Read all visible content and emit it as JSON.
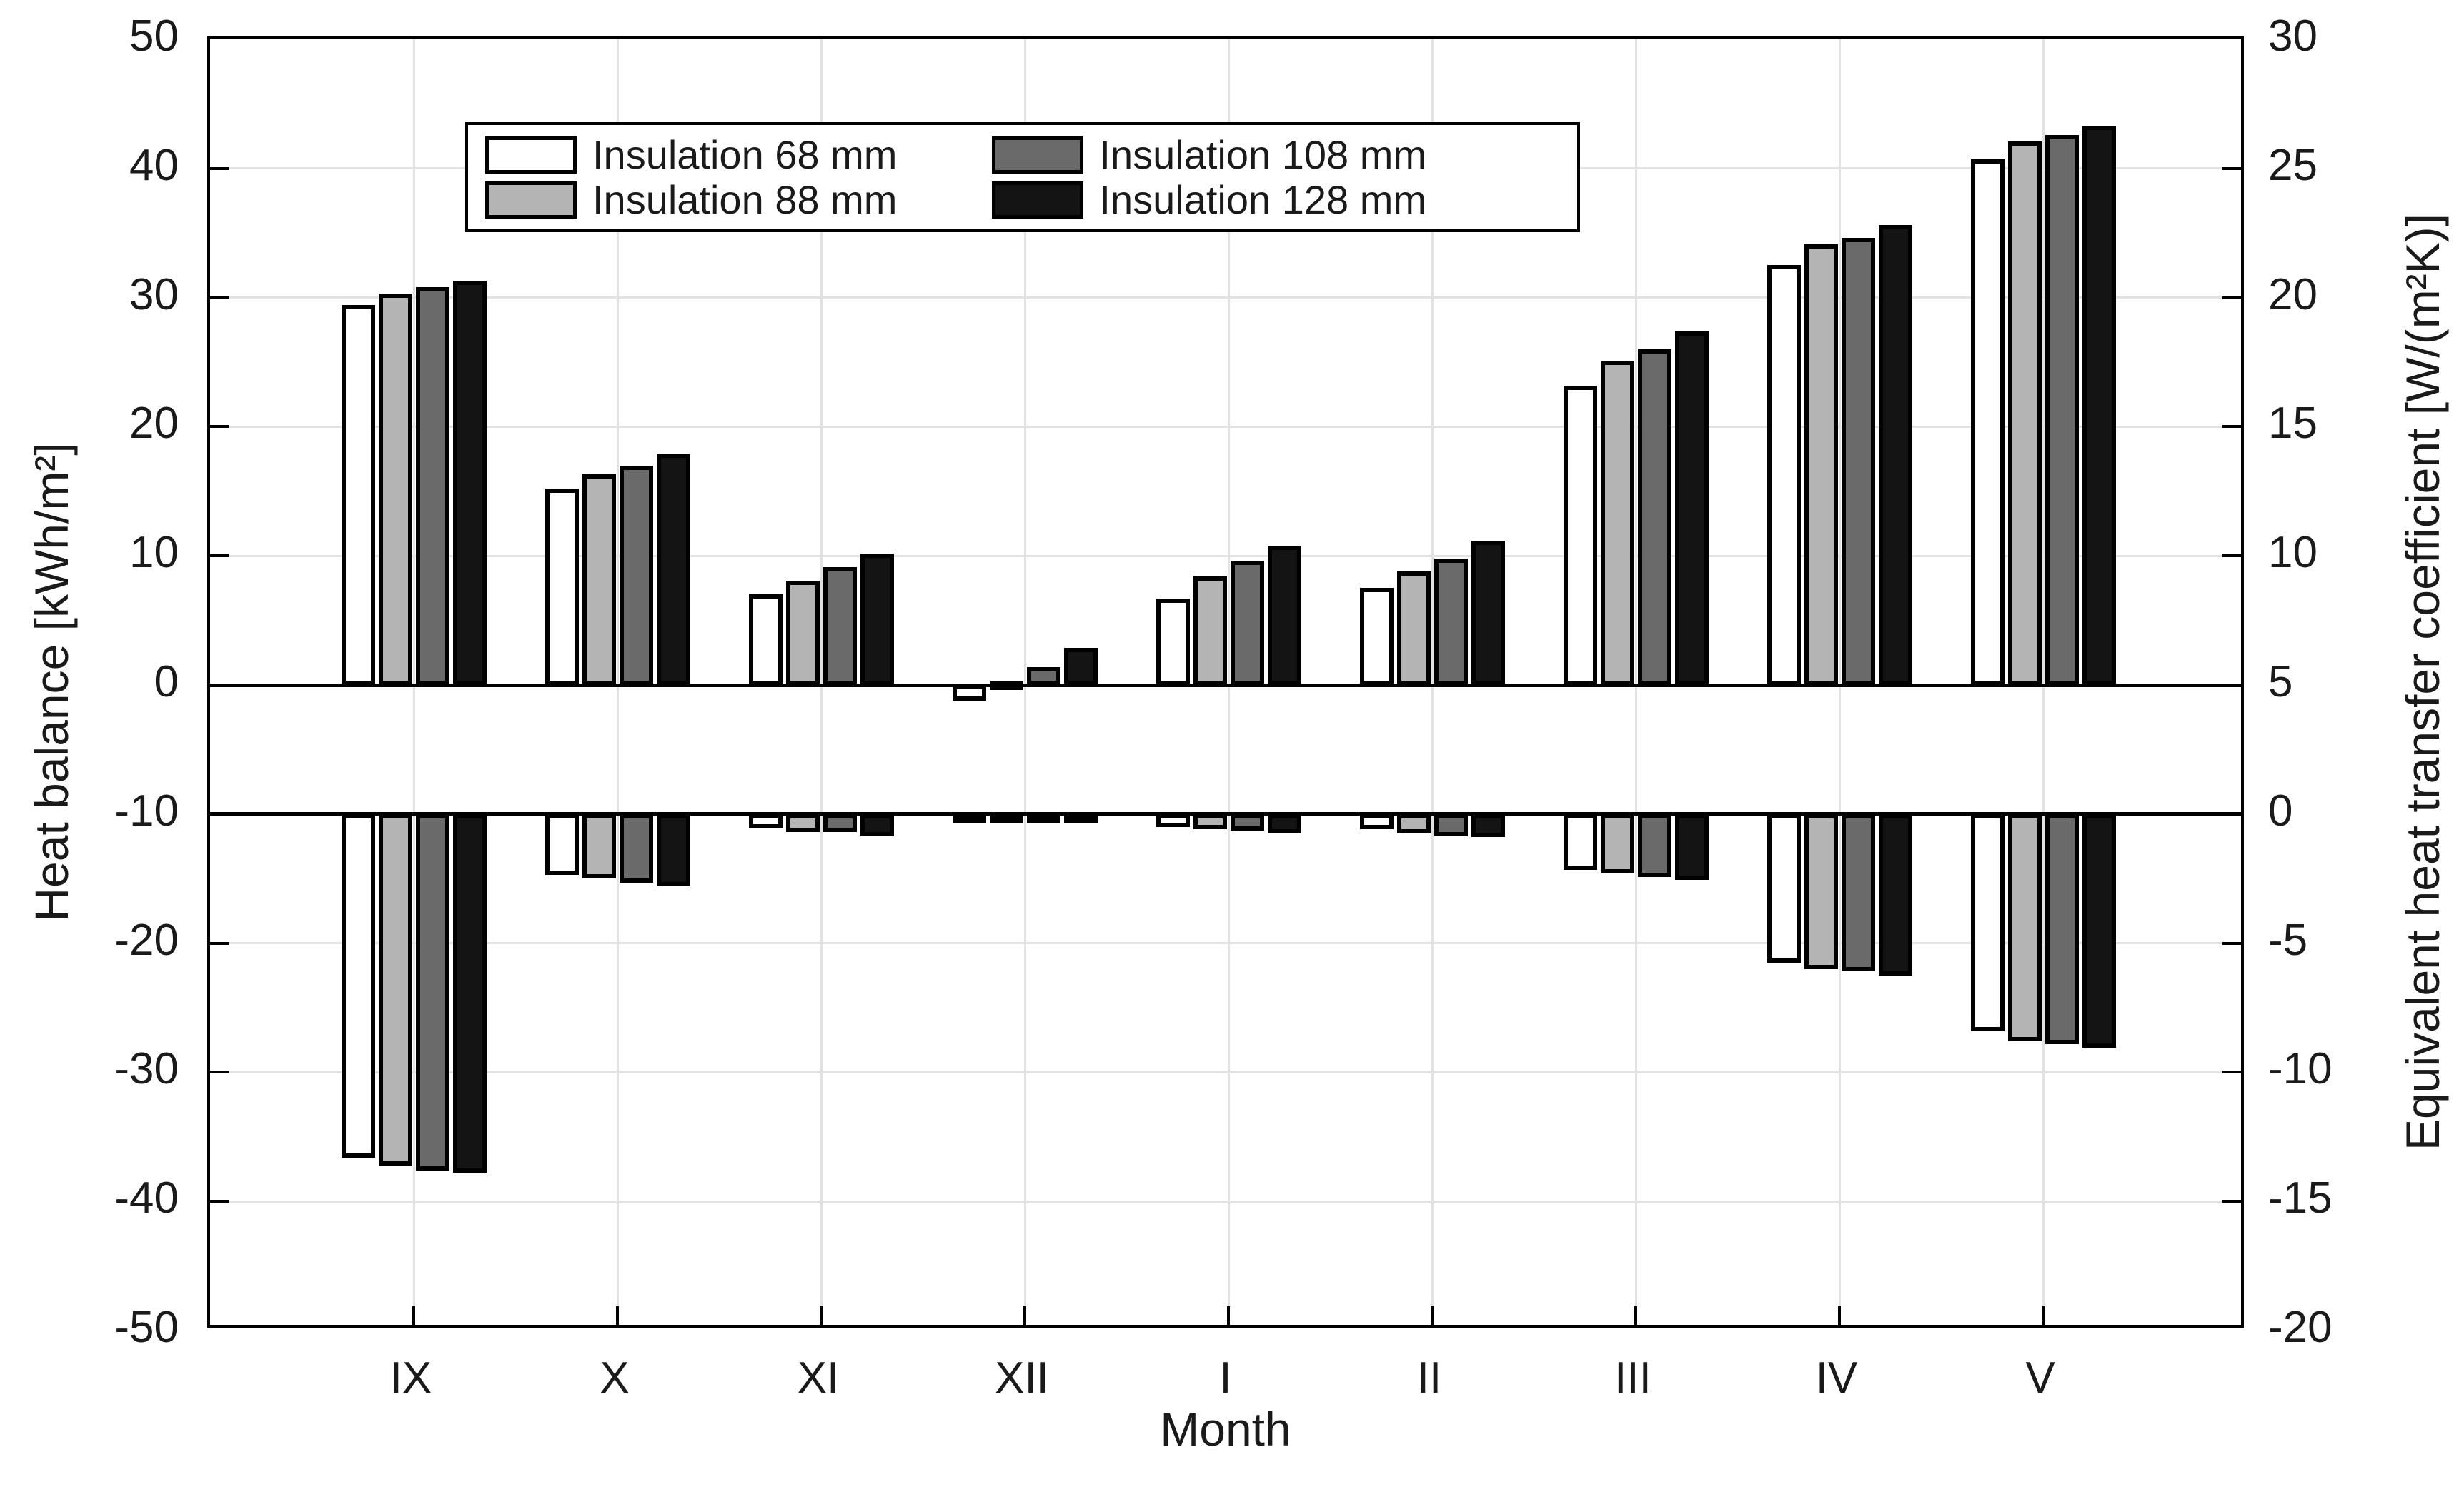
{
  "figure": {
    "x_axis_title": "Month",
    "left_axis_title": "Heat balance [kWh/m²]",
    "right_axis_title": "Equivalent heat transfer coefficient [W/(m²K)]"
  },
  "legend": {
    "items": [
      {
        "label": "Insulation 68 mm",
        "color": "#ffffff"
      },
      {
        "label": "Insulation 88 mm",
        "color": "#b4b4b4"
      },
      {
        "label": "Insulation 108 mm",
        "color": "#6a6a6a"
      },
      {
        "label": "Insulation 128 mm",
        "color": "#141414"
      }
    ]
  },
  "axes": {
    "left_tick_labels": [
      "50",
      "40",
      "30",
      "20",
      "10",
      "0",
      "-10",
      "-20",
      "-30",
      "-40",
      "-50"
    ],
    "right_tick_labels": [
      "30",
      "25",
      "20",
      "15",
      "10",
      "5",
      "0",
      "-5",
      "-10",
      "-15",
      "-20"
    ],
    "month_labels": [
      "IX",
      "X",
      "XI",
      "XII",
      "I",
      "II",
      "III",
      "IV",
      "V"
    ]
  },
  "colors": {
    "frame": "#000000",
    "gridline": "#e2e2e2",
    "background": "#ffffff"
  },
  "chart_data": {
    "type": "bar",
    "categories": [
      "IX",
      "X",
      "XI",
      "XII",
      "I",
      "II",
      "III",
      "IV",
      "V"
    ],
    "xlabel": "Month",
    "left_axis": {
      "label": "Heat balance [kWh/m²]",
      "min": -50,
      "max": 50,
      "tick_step": 10
    },
    "right_axis": {
      "label": "Equivalent heat transfer coefficient [W/(m²K)]",
      "min": -20,
      "max": 30,
      "tick_step": 5
    },
    "grid": true,
    "legend_position": "top-left",
    "baselines": {
      "heat_balance_baseline_left_axis": 0,
      "heat_transfer_baseline_right_axis": 0,
      "note": "Heat balance bars rise from left-axis 0; heat transfer coefficient bars hang from right-axis 0 (= -10 on left axis)."
    },
    "series_heat_balance_kWh_m2": [
      {
        "name": "Insulation 68 mm",
        "fill": "#ffffff",
        "values": [
          29.4,
          15.2,
          7.0,
          -1.2,
          6.7,
          7.5,
          23.2,
          32.5,
          40.7
        ]
      },
      {
        "name": "Insulation 88 mm",
        "fill": "#b4b4b4",
        "values": [
          30.3,
          16.3,
          8.1,
          0.3,
          8.4,
          8.8,
          25.1,
          34.1,
          42.1
        ]
      },
      {
        "name": "Insulation 108 mm",
        "fill": "#6a6a6a",
        "values": [
          30.8,
          17.0,
          9.1,
          1.4,
          9.6,
          9.8,
          26.0,
          34.6,
          42.6
        ]
      },
      {
        "name": "Insulation 128 mm",
        "fill": "#141414",
        "values": [
          31.3,
          17.9,
          10.2,
          2.9,
          10.8,
          11.2,
          27.4,
          35.6,
          43.3
        ]
      }
    ],
    "series_heat_transfer_coefficient_W_m2K": [
      {
        "name": "Insulation 68 mm",
        "fill": "#ffffff",
        "values": [
          -13.3,
          -2.35,
          -0.55,
          -0.1,
          -0.5,
          -0.6,
          -2.15,
          -5.75,
          -8.4
        ]
      },
      {
        "name": "Insulation 88 mm",
        "fill": "#b4b4b4",
        "values": [
          -13.6,
          -2.5,
          -0.7,
          -0.15,
          -0.6,
          -0.75,
          -2.3,
          -6.0,
          -8.8
        ]
      },
      {
        "name": "Insulation 108 mm",
        "fill": "#6a6a6a",
        "values": [
          -13.8,
          -2.65,
          -0.7,
          -0.2,
          -0.65,
          -0.85,
          -2.45,
          -6.1,
          -8.9
        ]
      },
      {
        "name": "Insulation 128 mm",
        "fill": "#141414",
        "values": [
          -13.9,
          -2.8,
          -0.85,
          -0.3,
          -0.75,
          -0.9,
          -2.55,
          -6.25,
          -9.05
        ]
      }
    ]
  }
}
